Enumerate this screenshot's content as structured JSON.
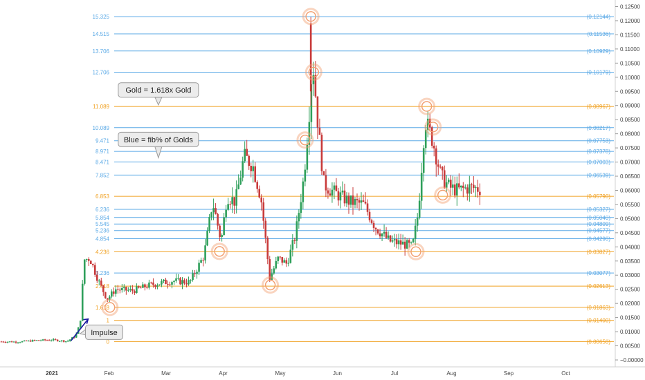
{
  "colors": {
    "blue": "#5aa9e6",
    "gold": "#f0a020",
    "up": "#2e9f5a",
    "down": "#c83a3a",
    "impulse": "#1a1aa0",
    "circle": "#f2a072"
  },
  "chart_data": {
    "type": "candlestick",
    "y_axis": {
      "min": -0.0005,
      "max": 0.1275,
      "ticks": [
        "−0.00000",
        "0.00500",
        "0.01000",
        "0.01500",
        "0.02000",
        "0.02500",
        "0.03000",
        "0.03500",
        "0.04000",
        "0.04500",
        "0.05000",
        "0.05500",
        "0.06000",
        "0.06500",
        "0.07000",
        "0.07500",
        "0.08000",
        "0.08500",
        "0.09000",
        "0.09500",
        "0.10000",
        "0.10500",
        "0.11000",
        "0.11500",
        "0.12000",
        "0.12500"
      ],
      "tick_values": [
        0,
        0.005,
        0.01,
        0.015,
        0.02,
        0.025,
        0.03,
        0.035,
        0.04,
        0.045,
        0.05,
        0.055,
        0.06,
        0.065,
        0.07,
        0.075,
        0.08,
        0.085,
        0.09,
        0.095,
        0.1,
        0.105,
        0.11,
        0.115,
        0.12,
        0.125
      ]
    },
    "x_axis": {
      "labels": [
        "2021",
        "Feb",
        "Mar",
        "Apr",
        "May",
        "Jun",
        "Jul",
        "Aug",
        "Sep",
        "Oct"
      ],
      "month_index": [
        0,
        1,
        2,
        3,
        4,
        5,
        6,
        7,
        8,
        9
      ]
    },
    "fib_levels": [
      {
        "left": "15.325",
        "right": "(0.12144)",
        "value": 0.12144,
        "color": "blue"
      },
      {
        "left": "14.515",
        "right": "(0.11536)",
        "value": 0.11536,
        "color": "blue"
      },
      {
        "left": "13.706",
        "right": "(0.10929)",
        "value": 0.10929,
        "color": "blue"
      },
      {
        "left": "12.706",
        "right": "(0.10179)",
        "value": 0.10179,
        "color": "blue"
      },
      {
        "left": "11.089",
        "right": "(0.08967)",
        "value": 0.08967,
        "color": "gold"
      },
      {
        "left": "10.089",
        "right": "(0.08217)",
        "value": 0.08217,
        "color": "blue"
      },
      {
        "left": "9.471",
        "right": "(0.07753)",
        "value": 0.07753,
        "color": "blue"
      },
      {
        "left": "8.971",
        "right": "(0.07378)",
        "value": 0.07378,
        "color": "blue"
      },
      {
        "left": "8.471",
        "right": "(0.07003)",
        "value": 0.07003,
        "color": "blue"
      },
      {
        "left": "7.852",
        "right": "(0.06539)",
        "value": 0.06539,
        "color": "blue"
      },
      {
        "left": "6.853",
        "right": "(0.05790)",
        "value": 0.0579,
        "color": "gold"
      },
      {
        "left": "6.236",
        "right": "(0.05327)",
        "value": 0.05327,
        "color": "blue"
      },
      {
        "left": "5.854",
        "right": "(0.05040)",
        "value": 0.0504,
        "color": "blue"
      },
      {
        "left": "5.545",
        "right": "(0.04809)",
        "value": 0.04809,
        "color": "blue"
      },
      {
        "left": "5.236",
        "right": "(0.04577)",
        "value": 0.04577,
        "color": "blue"
      },
      {
        "left": "4.854",
        "right": "(0.04290)",
        "value": 0.0429,
        "color": "blue"
      },
      {
        "left": "4.236",
        "right": "(0.03827)",
        "value": 0.03827,
        "color": "gold"
      },
      {
        "left": "3.236",
        "right": "(0.03077)",
        "value": 0.03077,
        "color": "blue"
      },
      {
        "left": "2.618",
        "right": "(0.02613)",
        "value": 0.02613,
        "color": "gold"
      },
      {
        "left": "1.618",
        "right": "(0.01863)",
        "value": 0.01863,
        "color": "gold"
      },
      {
        "left": "1",
        "right": "(0.01400)",
        "value": 0.014,
        "color": "gold"
      },
      {
        "left": "0",
        "right": "(0.00650)",
        "value": 0.0065,
        "color": "gold"
      }
    ],
    "annotations": [
      {
        "text": "Gold = 1.618x Gold",
        "at_month": 2.75,
        "at_value": 0.0955,
        "pointer_value": 0.0902
      },
      {
        "text": "Blue = fib% of Golds",
        "at_month": 2.75,
        "at_value": 0.078,
        "pointer_value": 0.0715
      },
      {
        "text": "Impulse",
        "at_month": 1.8,
        "at_value": 0.0098,
        "pointer_month": 1.38,
        "pointer_value": 0.0093
      }
    ],
    "circled_points": [
      {
        "month": 5.42,
        "value": 0.1215
      },
      {
        "month": 5.47,
        "value": 0.1018
      },
      {
        "month": 5.32,
        "value": 0.0778
      },
      {
        "month": 4.71,
        "value": 0.0265
      },
      {
        "month": 3.82,
        "value": 0.0384
      },
      {
        "month": 1.9,
        "value": 0.0186
      },
      {
        "month": 7.45,
        "value": 0.0897
      },
      {
        "month": 7.56,
        "value": 0.0824
      },
      {
        "month": 7.73,
        "value": 0.0583
      },
      {
        "month": 7.26,
        "value": 0.0383
      }
    ],
    "impulse_arrow": {
      "from_month": 1.22,
      "from_value": 0.0068,
      "to_month": 1.52,
      "to_value": 0.0145
    },
    "price_path": [
      [
        0.0,
        0.0065
      ],
      [
        0.3,
        0.0064
      ],
      [
        0.6,
        0.0069
      ],
      [
        0.9,
        0.0071
      ],
      [
        1.15,
        0.0066
      ],
      [
        1.3,
        0.0085
      ],
      [
        1.38,
        0.013
      ],
      [
        1.45,
        0.0355
      ],
      [
        1.55,
        0.036
      ],
      [
        1.7,
        0.028
      ],
      [
        1.85,
        0.0215
      ],
      [
        2.0,
        0.025
      ],
      [
        2.3,
        0.0245
      ],
      [
        2.6,
        0.0265
      ],
      [
        3.0,
        0.028
      ],
      [
        3.3,
        0.0275
      ],
      [
        3.55,
        0.037
      ],
      [
        3.7,
        0.056
      ],
      [
        3.85,
        0.042
      ],
      [
        3.95,
        0.058
      ],
      [
        4.1,
        0.056
      ],
      [
        4.25,
        0.072
      ],
      [
        4.4,
        0.069
      ],
      [
        4.55,
        0.057
      ],
      [
        4.7,
        0.029
      ],
      [
        4.85,
        0.036
      ],
      [
        5.0,
        0.034
      ],
      [
        5.15,
        0.044
      ],
      [
        5.3,
        0.065
      ],
      [
        5.4,
        0.09
      ],
      [
        5.45,
        0.107
      ],
      [
        5.55,
        0.082
      ],
      [
        5.65,
        0.062
      ],
      [
        5.85,
        0.059
      ],
      [
        6.1,
        0.056
      ],
      [
        6.35,
        0.055
      ],
      [
        6.55,
        0.047
      ],
      [
        6.8,
        0.042
      ],
      [
        7.05,
        0.041
      ],
      [
        7.2,
        0.04
      ],
      [
        7.3,
        0.052
      ],
      [
        7.42,
        0.085
      ],
      [
        7.55,
        0.078
      ],
      [
        7.7,
        0.065
      ],
      [
        7.85,
        0.061
      ],
      [
        8.0,
        0.06
      ],
      [
        8.2,
        0.061
      ],
      [
        8.38,
        0.0605
      ]
    ]
  }
}
